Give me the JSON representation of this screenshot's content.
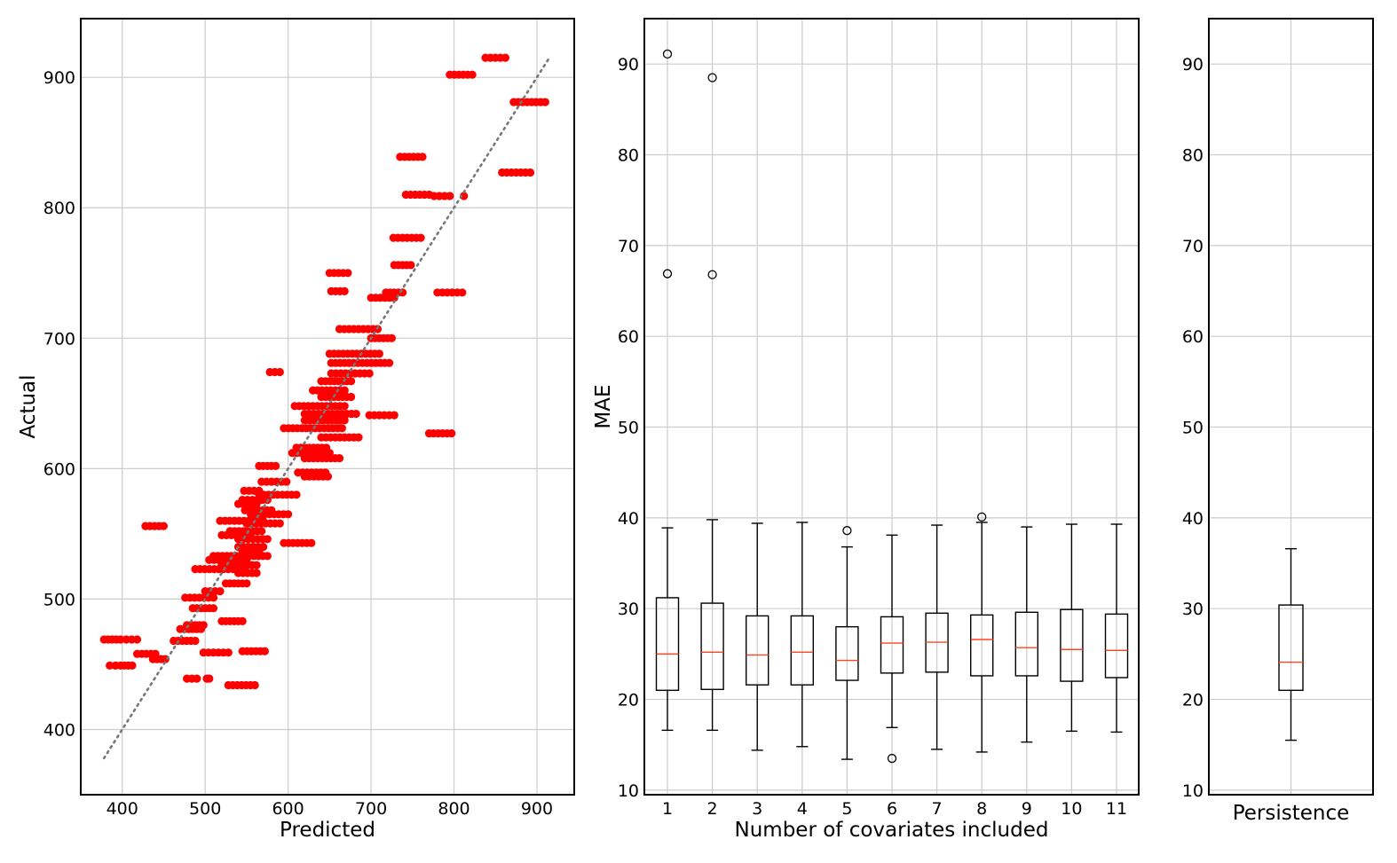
{
  "chart_data": [
    {
      "type": "scatter",
      "xlabel": "Predicted",
      "ylabel": "Actual",
      "xlim": [
        350,
        945
      ],
      "ylim": [
        350,
        945
      ],
      "xticks": [
        400,
        500,
        600,
        700,
        800,
        900
      ],
      "yticks": [
        400,
        500,
        600,
        700,
        800,
        900
      ],
      "grid": true,
      "colors": {
        "points": "#ff0000",
        "reference_line": "#777777"
      },
      "reference_line": {
        "style": "dotted",
        "x": [
          378,
          916
        ],
        "y": [
          378,
          916
        ]
      },
      "clusters": [
        {
          "y": 915,
          "x": [
            838,
            862
          ]
        },
        {
          "y": 902,
          "x": [
            795,
            822
          ]
        },
        {
          "y": 881,
          "x": [
            872,
            910
          ]
        },
        {
          "y": 839,
          "x": [
            735,
            762
          ]
        },
        {
          "y": 827,
          "x": [
            858,
            892
          ]
        },
        {
          "y": 810,
          "x": [
            742,
            770
          ]
        },
        {
          "y": 809,
          "x": [
            776,
            795
          ]
        },
        {
          "y": 809,
          "x": [
            812,
            814
          ]
        },
        {
          "y": 777,
          "x": [
            727,
            760
          ]
        },
        {
          "y": 756,
          "x": [
            728,
            748
          ]
        },
        {
          "y": 750,
          "x": [
            650,
            672
          ]
        },
        {
          "y": 736,
          "x": [
            652,
            668
          ]
        },
        {
          "y": 735,
          "x": [
            718,
            738
          ]
        },
        {
          "y": 735,
          "x": [
            780,
            810
          ]
        },
        {
          "y": 731,
          "x": [
            700,
            728
          ]
        },
        {
          "y": 707,
          "x": [
            662,
            708
          ]
        },
        {
          "y": 700,
          "x": [
            700,
            725
          ]
        },
        {
          "y": 688,
          "x": [
            650,
            710
          ]
        },
        {
          "y": 681,
          "x": [
            652,
            722
          ]
        },
        {
          "y": 674,
          "x": [
            578,
            590
          ]
        },
        {
          "y": 673,
          "x": [
            652,
            698
          ]
        },
        {
          "y": 667,
          "x": [
            640,
            676
          ]
        },
        {
          "y": 660,
          "x": [
            630,
            668
          ]
        },
        {
          "y": 655,
          "x": [
            640,
            676
          ]
        },
        {
          "y": 648,
          "x": [
            608,
            668
          ]
        },
        {
          "y": 642,
          "x": [
            620,
            682
          ]
        },
        {
          "y": 641,
          "x": [
            698,
            728
          ]
        },
        {
          "y": 637,
          "x": [
            620,
            668
          ]
        },
        {
          "y": 631,
          "x": [
            595,
            665
          ]
        },
        {
          "y": 627,
          "x": [
            770,
            797
          ]
        },
        {
          "y": 624,
          "x": [
            640,
            685
          ]
        },
        {
          "y": 616,
          "x": [
            610,
            646
          ]
        },
        {
          "y": 612,
          "x": [
            605,
            650
          ]
        },
        {
          "y": 608,
          "x": [
            620,
            662
          ]
        },
        {
          "y": 602,
          "x": [
            565,
            585
          ]
        },
        {
          "y": 597,
          "x": [
            612,
            645
          ]
        },
        {
          "y": 594,
          "x": [
            620,
            648
          ]
        },
        {
          "y": 590,
          "x": [
            568,
            598
          ]
        },
        {
          "y": 583,
          "x": [
            547,
            565
          ]
        },
        {
          "y": 580,
          "x": [
            565,
            610
          ]
        },
        {
          "y": 576,
          "x": [
            545,
            575
          ]
        },
        {
          "y": 573,
          "x": [
            540,
            562
          ]
        },
        {
          "y": 568,
          "x": [
            548,
            580
          ]
        },
        {
          "y": 565,
          "x": [
            555,
            600
          ]
        },
        {
          "y": 560,
          "x": [
            518,
            570
          ]
        },
        {
          "y": 558,
          "x": [
            550,
            590
          ]
        },
        {
          "y": 556,
          "x": [
            428,
            450
          ]
        },
        {
          "y": 552,
          "x": [
            530,
            568
          ]
        },
        {
          "y": 549,
          "x": [
            520,
            555
          ]
        },
        {
          "y": 546,
          "x": [
            540,
            575
          ]
        },
        {
          "y": 543,
          "x": [
            595,
            628
          ]
        },
        {
          "y": 540,
          "x": [
            540,
            570
          ]
        },
        {
          "y": 536,
          "x": [
            545,
            565
          ]
        },
        {
          "y": 533,
          "x": [
            510,
            575
          ]
        },
        {
          "y": 530,
          "x": [
            505,
            550
          ]
        },
        {
          "y": 526,
          "x": [
            520,
            562
          ]
        },
        {
          "y": 523,
          "x": [
            488,
            545
          ]
        },
        {
          "y": 520,
          "x": [
            540,
            562
          ]
        },
        {
          "y": 512,
          "x": [
            525,
            550
          ]
        },
        {
          "y": 506,
          "x": [
            500,
            518
          ]
        },
        {
          "y": 501,
          "x": [
            476,
            510
          ]
        },
        {
          "y": 493,
          "x": [
            485,
            510
          ]
        },
        {
          "y": 483,
          "x": [
            520,
            545
          ]
        },
        {
          "y": 480,
          "x": [
            478,
            498
          ]
        },
        {
          "y": 477,
          "x": [
            470,
            495
          ]
        },
        {
          "y": 469,
          "x": [
            378,
            398
          ]
        },
        {
          "y": 469,
          "x": [
            405,
            418
          ]
        },
        {
          "y": 468,
          "x": [
            462,
            488
          ]
        },
        {
          "y": 460,
          "x": [
            545,
            572
          ]
        },
        {
          "y": 459,
          "x": [
            498,
            528
          ]
        },
        {
          "y": 458,
          "x": [
            418,
            440
          ]
        },
        {
          "y": 454,
          "x": [
            437,
            452
          ]
        },
        {
          "y": 449,
          "x": [
            385,
            392
          ]
        },
        {
          "y": 449,
          "x": [
            398,
            412
          ]
        },
        {
          "y": 439,
          "x": [
            478,
            490
          ]
        },
        {
          "y": 439,
          "x": [
            502,
            505
          ]
        },
        {
          "y": 434,
          "x": [
            528,
            560
          ]
        }
      ]
    },
    {
      "type": "box",
      "xlabel": "Number of covariates included",
      "ylabel": "MAE",
      "ylim": [
        9.5,
        95
      ],
      "yticks": [
        10,
        20,
        30,
        40,
        50,
        60,
        70,
        80,
        90
      ],
      "grid": true,
      "colors": {
        "box": "#000000",
        "median": "#ff4422"
      },
      "categories": [
        "1",
        "2",
        "3",
        "4",
        "5",
        "6",
        "7",
        "8",
        "9",
        "10",
        "11"
      ],
      "boxes": [
        {
          "whislo": 16.6,
          "q1": 21.0,
          "med": 25.0,
          "q3": 31.2,
          "whishi": 38.9,
          "fliers": [
            66.9,
            91.1
          ]
        },
        {
          "whislo": 16.6,
          "q1": 21.1,
          "med": 25.2,
          "q3": 30.6,
          "whishi": 39.8,
          "fliers": [
            66.8,
            88.5
          ]
        },
        {
          "whislo": 14.4,
          "q1": 21.6,
          "med": 24.9,
          "q3": 29.2,
          "whishi": 39.4,
          "fliers": []
        },
        {
          "whislo": 14.8,
          "q1": 21.6,
          "med": 25.2,
          "q3": 29.2,
          "whishi": 39.5,
          "fliers": []
        },
        {
          "whislo": 13.4,
          "q1": 22.1,
          "med": 24.3,
          "q3": 28.0,
          "whishi": 36.8,
          "fliers": [
            38.6
          ]
        },
        {
          "whislo": 16.9,
          "q1": 22.9,
          "med": 26.2,
          "q3": 29.1,
          "whishi": 38.1,
          "fliers": [
            13.5
          ]
        },
        {
          "whislo": 14.5,
          "q1": 23.0,
          "med": 26.3,
          "q3": 29.5,
          "whishi": 39.2,
          "fliers": []
        },
        {
          "whislo": 14.2,
          "q1": 22.6,
          "med": 26.6,
          "q3": 29.3,
          "whishi": 39.5,
          "fliers": [
            40.1
          ]
        },
        {
          "whislo": 15.3,
          "q1": 22.6,
          "med": 25.7,
          "q3": 29.6,
          "whishi": 39.0,
          "fliers": []
        },
        {
          "whislo": 16.5,
          "q1": 22.0,
          "med": 25.5,
          "q3": 29.9,
          "whishi": 39.3,
          "fliers": []
        },
        {
          "whislo": 16.4,
          "q1": 22.4,
          "med": 25.4,
          "q3": 29.4,
          "whishi": 39.3,
          "fliers": []
        }
      ]
    },
    {
      "type": "box",
      "xlabel": "Persistence",
      "ylim": [
        9.5,
        95
      ],
      "yticks": [
        10,
        20,
        30,
        40,
        50,
        60,
        70,
        80,
        90
      ],
      "grid": true,
      "colors": {
        "box": "#000000",
        "median": "#ff4422"
      },
      "boxes": [
        {
          "whislo": 15.5,
          "q1": 21.0,
          "med": 24.1,
          "q3": 30.4,
          "whishi": 36.6,
          "fliers": []
        }
      ]
    }
  ]
}
